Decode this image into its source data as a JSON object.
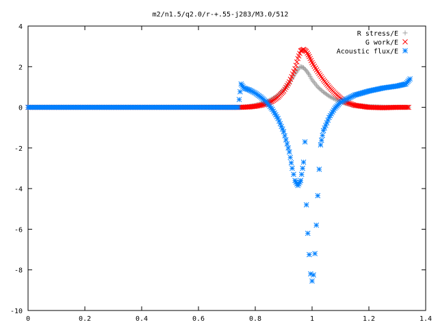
{
  "chart_data": {
    "type": "scatter",
    "title": "m2/n1.5/q2.0/r-+.55-j283/M3.0/512",
    "xlabel": "",
    "ylabel": "",
    "xlim": [
      0,
      1.4
    ],
    "ylim": [
      -10,
      4
    ],
    "xticks": [
      "0",
      "0.2",
      "0.4",
      "0.6",
      "0.8",
      "1",
      "1.2",
      "1.4"
    ],
    "yticks": [
      "4",
      "2",
      "0",
      "-2",
      "-4",
      "-6",
      "-8",
      "-10"
    ],
    "legend_position": "top-right",
    "grid": false,
    "series": [
      {
        "name": "R stress/E",
        "marker": "plus",
        "color": "#a0a0a0",
        "points": [
          [
            0,
            0
          ],
          [
            0.5,
            0
          ],
          [
            0.75,
            0.0
          ],
          [
            0.78,
            0.05
          ],
          [
            0.8,
            0.1
          ],
          [
            0.82,
            0.18
          ],
          [
            0.84,
            0.28
          ],
          [
            0.86,
            0.42
          ],
          [
            0.88,
            0.6
          ],
          [
            0.9,
            0.85
          ],
          [
            0.92,
            1.2
          ],
          [
            0.94,
            1.65
          ],
          [
            0.955,
            1.95
          ],
          [
            0.96,
            2.0
          ],
          [
            0.97,
            1.95
          ],
          [
            0.98,
            1.8
          ],
          [
            0.99,
            1.6
          ],
          [
            1.0,
            1.35
          ],
          [
            1.02,
            1.0
          ],
          [
            1.04,
            0.75
          ],
          [
            1.06,
            0.55
          ],
          [
            1.08,
            0.4
          ],
          [
            1.1,
            0.28
          ],
          [
            1.12,
            0.18
          ],
          [
            1.15,
            0.1
          ],
          [
            1.2,
            0.04
          ],
          [
            1.25,
            0.01
          ],
          [
            1.3,
            0.0
          ],
          [
            1.34,
            0.0
          ]
        ]
      },
      {
        "name": "G work/E",
        "marker": "cross",
        "color": "#ff0000",
        "points": [
          [
            0,
            0
          ],
          [
            0.5,
            0
          ],
          [
            0.75,
            0.0
          ],
          [
            0.78,
            0.02
          ],
          [
            0.8,
            0.05
          ],
          [
            0.82,
            0.1
          ],
          [
            0.84,
            0.18
          ],
          [
            0.86,
            0.3
          ],
          [
            0.88,
            0.5
          ],
          [
            0.9,
            0.8
          ],
          [
            0.92,
            1.25
          ],
          [
            0.94,
            1.9
          ],
          [
            0.95,
            2.4
          ],
          [
            0.96,
            2.78
          ],
          [
            0.97,
            2.85
          ],
          [
            0.98,
            2.75
          ],
          [
            0.99,
            2.5
          ],
          [
            1.0,
            2.2
          ],
          [
            1.02,
            1.75
          ],
          [
            1.04,
            1.35
          ],
          [
            1.06,
            1.0
          ],
          [
            1.08,
            0.7
          ],
          [
            1.1,
            0.45
          ],
          [
            1.12,
            0.25
          ],
          [
            1.15,
            0.1
          ],
          [
            1.2,
            0.0
          ],
          [
            1.25,
            -0.02
          ],
          [
            1.3,
            0.0
          ],
          [
            1.34,
            0.0
          ]
        ]
      },
      {
        "name": "Acoustic flux/E",
        "marker": "star",
        "color": "#0080ff",
        "points": [
          [
            0,
            0
          ],
          [
            0.5,
            0
          ],
          [
            0.74,
            0.0
          ],
          [
            0.75,
            1.15
          ],
          [
            0.76,
            0.95
          ],
          [
            0.78,
            0.85
          ],
          [
            0.8,
            0.7
          ],
          [
            0.82,
            0.5
          ],
          [
            0.84,
            0.25
          ],
          [
            0.86,
            -0.1
          ],
          [
            0.88,
            -0.55
          ],
          [
            0.9,
            -1.2
          ],
          [
            0.92,
            -2.2
          ],
          [
            0.93,
            -3.0
          ],
          [
            0.94,
            -3.6
          ],
          [
            0.95,
            -3.85
          ],
          [
            0.96,
            -3.6
          ],
          [
            0.97,
            -2.7
          ],
          [
            0.975,
            -1.7
          ],
          [
            0.98,
            -4.8
          ],
          [
            0.985,
            -6.2
          ],
          [
            0.99,
            -7.25
          ],
          [
            0.995,
            -8.2
          ],
          [
            1.0,
            -8.55
          ],
          [
            1.005,
            -8.25
          ],
          [
            1.01,
            -7.2
          ],
          [
            1.015,
            -5.8
          ],
          [
            1.02,
            -4.35
          ],
          [
            1.025,
            -3.05
          ],
          [
            1.03,
            -1.85
          ],
          [
            1.04,
            -1.15
          ],
          [
            1.06,
            -0.5
          ],
          [
            1.08,
            -0.05
          ],
          [
            1.1,
            0.25
          ],
          [
            1.15,
            0.6
          ],
          [
            1.2,
            0.8
          ],
          [
            1.25,
            0.95
          ],
          [
            1.3,
            1.05
          ],
          [
            1.33,
            1.15
          ],
          [
            1.345,
            1.4
          ]
        ]
      }
    ]
  }
}
